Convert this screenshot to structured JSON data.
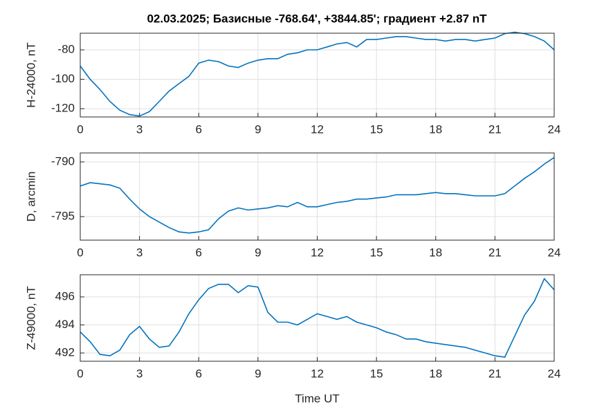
{
  "chart_data": [
    {
      "type": "line",
      "title": "02.03.2025;  Базисные  -768.64', +3844.85'; градиент +2.87 nT",
      "ylabel": "H-24000, nT",
      "color": "#0072bd",
      "grid": true,
      "x": [
        0,
        0.5,
        1,
        1.5,
        2,
        2.5,
        3,
        3.5,
        4,
        4.5,
        5,
        5.5,
        6,
        6.5,
        7,
        7.5,
        8,
        8.5,
        9,
        9.5,
        10,
        10.5,
        11,
        11.5,
        12,
        12.5,
        13,
        13.5,
        14,
        14.5,
        15,
        15.5,
        16,
        16.5,
        17,
        17.5,
        18,
        18.5,
        19,
        19.5,
        20,
        20.5,
        21,
        21.5,
        22,
        22.5,
        23,
        23.5,
        24
      ],
      "values": [
        -91,
        -100,
        -107,
        -115,
        -121,
        -124,
        -125,
        -122,
        -115,
        -108,
        -103,
        -98,
        -89,
        -87,
        -88,
        -91,
        -92,
        -89,
        -87,
        -86,
        -86,
        -83,
        -82,
        -80,
        -80,
        -78,
        -76,
        -75,
        -78,
        -73,
        -73,
        -72,
        -71,
        -71,
        -72,
        -73,
        -73,
        -74,
        -73,
        -73,
        -74,
        -73,
        -72,
        -69,
        -68,
        -69,
        -71,
        -74,
        -80
      ],
      "xlim": [
        0,
        24
      ],
      "xticks": [
        0,
        3,
        6,
        9,
        12,
        15,
        18,
        21,
        24
      ],
      "ylim": [
        -125.6,
        -68.7
      ],
      "yticks": [
        -120,
        -100,
        -80
      ]
    },
    {
      "type": "line",
      "ylabel": "D, arcmin",
      "color": "#0072bd",
      "grid": true,
      "x": [
        0,
        0.5,
        1,
        1.5,
        2,
        2.5,
        3,
        3.5,
        4,
        4.5,
        5,
        5.5,
        6,
        6.5,
        7,
        7.5,
        8,
        8.5,
        9,
        9.5,
        10,
        10.5,
        11,
        11.5,
        12,
        12.5,
        13,
        13.5,
        14,
        14.5,
        15,
        15.5,
        16,
        16.5,
        17,
        17.5,
        18,
        18.5,
        19,
        19.5,
        20,
        20.5,
        21,
        21.5,
        22,
        22.5,
        23,
        23.5,
        24
      ],
      "values": [
        -792.2,
        -791.9,
        -792.0,
        -792.1,
        -792.4,
        -793.4,
        -794.3,
        -795.0,
        -795.5,
        -796.0,
        -796.4,
        -796.5,
        -796.4,
        -796.2,
        -795.2,
        -794.5,
        -794.2,
        -794.4,
        -794.3,
        -794.2,
        -794.0,
        -794.1,
        -793.7,
        -794.1,
        -794.1,
        -793.9,
        -793.7,
        -793.6,
        -793.4,
        -793.4,
        -793.3,
        -793.2,
        -793.0,
        -793.0,
        -793.0,
        -792.9,
        -792.8,
        -792.9,
        -792.9,
        -793.0,
        -793.1,
        -793.1,
        -793.1,
        -792.9,
        -792.2,
        -791.5,
        -790.9,
        -790.2,
        -789.6
      ],
      "xlim": [
        0,
        24
      ],
      "xticks": [
        0,
        3,
        6,
        9,
        12,
        15,
        18,
        21,
        24
      ],
      "ylim": [
        -797.15,
        -789.18
      ],
      "yticks": [
        -795,
        -790
      ]
    },
    {
      "type": "line",
      "ylabel": "Z-49000, nT",
      "xlabel": "Time UT",
      "color": "#0072bd",
      "grid": true,
      "x": [
        0,
        0.5,
        1,
        1.5,
        2,
        2.5,
        3,
        3.5,
        4,
        4.5,
        5,
        5.5,
        6,
        6.5,
        7,
        7.5,
        8,
        8.5,
        9,
        9.5,
        10,
        10.5,
        11,
        11.5,
        12,
        12.5,
        13,
        13.5,
        14,
        14.5,
        15,
        15.5,
        16,
        16.5,
        17,
        17.5,
        18,
        18.5,
        19,
        19.5,
        20,
        20.5,
        21,
        21.5,
        22,
        22.5,
        23,
        23.5,
        24
      ],
      "values": [
        493.5,
        492.8,
        491.9,
        491.8,
        492.2,
        493.3,
        493.9,
        493.0,
        492.4,
        492.5,
        493.5,
        494.8,
        495.8,
        496.6,
        496.9,
        496.9,
        496.3,
        496.8,
        496.7,
        494.9,
        494.2,
        494.2,
        494.0,
        494.4,
        494.8,
        494.6,
        494.4,
        494.6,
        494.2,
        494.0,
        493.8,
        493.5,
        493.3,
        493.0,
        493.0,
        492.8,
        492.7,
        492.6,
        492.5,
        492.4,
        492.2,
        492.0,
        491.8,
        491.7,
        493.2,
        494.7,
        495.7,
        497.3,
        496.5
      ],
      "xlim": [
        0,
        24
      ],
      "xticks": [
        0,
        3,
        6,
        9,
        12,
        15,
        18,
        21,
        24
      ],
      "ylim": [
        491.41,
        497.58
      ],
      "yticks": [
        492,
        494,
        496
      ]
    }
  ]
}
